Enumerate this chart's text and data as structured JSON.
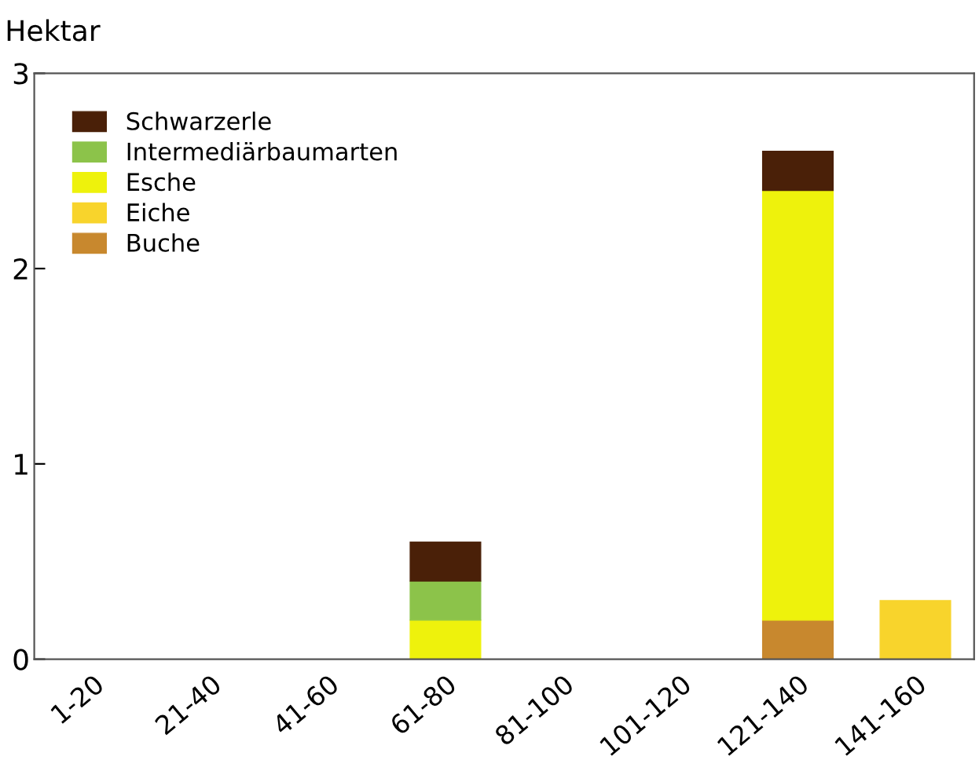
{
  "chart_data": {
    "type": "bar",
    "ylabel": "Hektar",
    "stacked": true,
    "categories": [
      "1-20",
      "21-40",
      "41-60",
      "61-80",
      "81-100",
      "101-120",
      "121-140",
      "141-160"
    ],
    "series": [
      {
        "name": "Buche",
        "color": "#c8882e",
        "values": [
          null,
          null,
          null,
          null,
          null,
          null,
          0.2,
          null
        ]
      },
      {
        "name": "Eiche",
        "color": "#f8d42c",
        "values": [
          null,
          null,
          null,
          null,
          null,
          null,
          null,
          0.3
        ]
      },
      {
        "name": "Esche",
        "color": "#eef20c",
        "values": [
          null,
          null,
          null,
          0.2,
          null,
          null,
          2.2,
          null
        ]
      },
      {
        "name": "Intermediärbaumarten",
        "color": "#8cc34a",
        "values": [
          null,
          null,
          null,
          0.2,
          null,
          null,
          null,
          null
        ]
      },
      {
        "name": "Schwarzerle",
        "color": "#4a2008",
        "values": [
          null,
          null,
          null,
          0.2,
          null,
          null,
          0.2,
          null
        ]
      }
    ],
    "ylim": [
      0,
      3
    ],
    "yticks": [
      0,
      1,
      2,
      3
    ],
    "grid": false,
    "legend": "top left"
  }
}
